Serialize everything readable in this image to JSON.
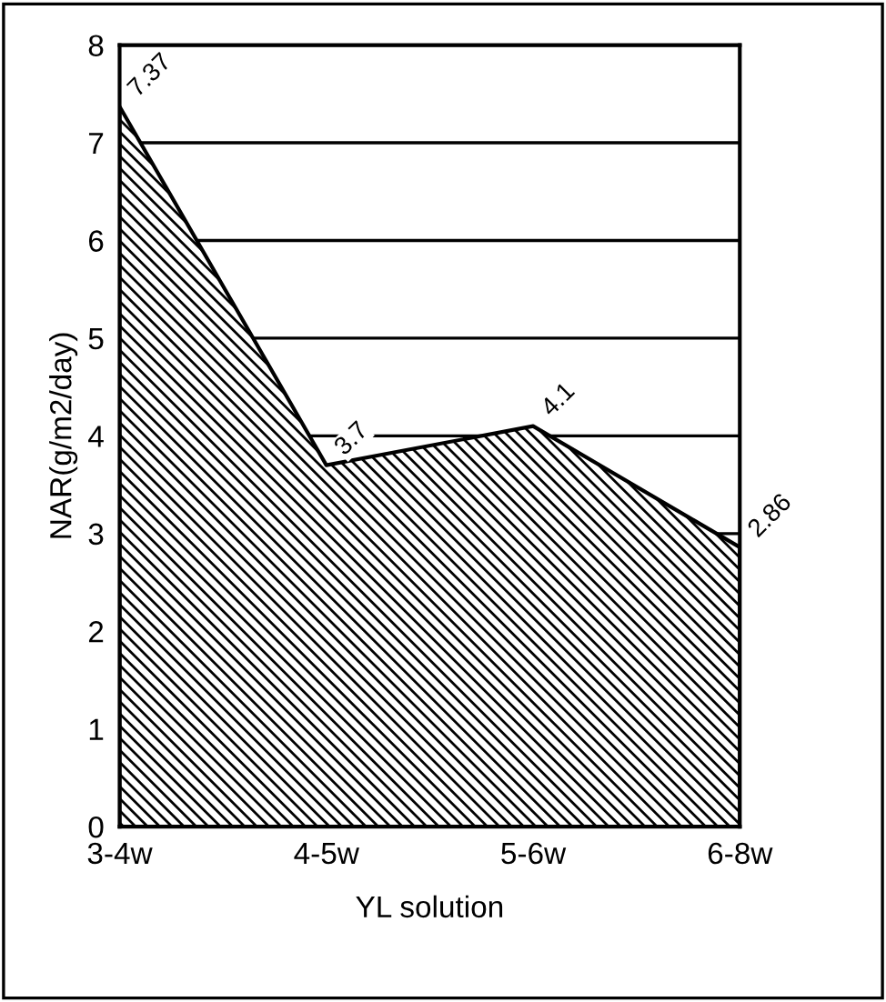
{
  "chart_data": {
    "type": "area",
    "xlabel": "YL solution",
    "ylabel": "NAR(g/m2/day)",
    "categories": [
      "3-4w",
      "4-5w",
      "5-6w",
      "6-8w"
    ],
    "series": [
      {
        "color": "#000000",
        "values": [
          7.37,
          3.7,
          4.1,
          2.86
        ],
        "value_labels": [
          "7.37",
          "3.7",
          "4.1",
          "2.86"
        ]
      }
    ],
    "ylim": [
      0,
      8
    ],
    "yticks": [
      0,
      1,
      2,
      3,
      4,
      5,
      6,
      7,
      8
    ],
    "grid": "y",
    "legend": false
  }
}
